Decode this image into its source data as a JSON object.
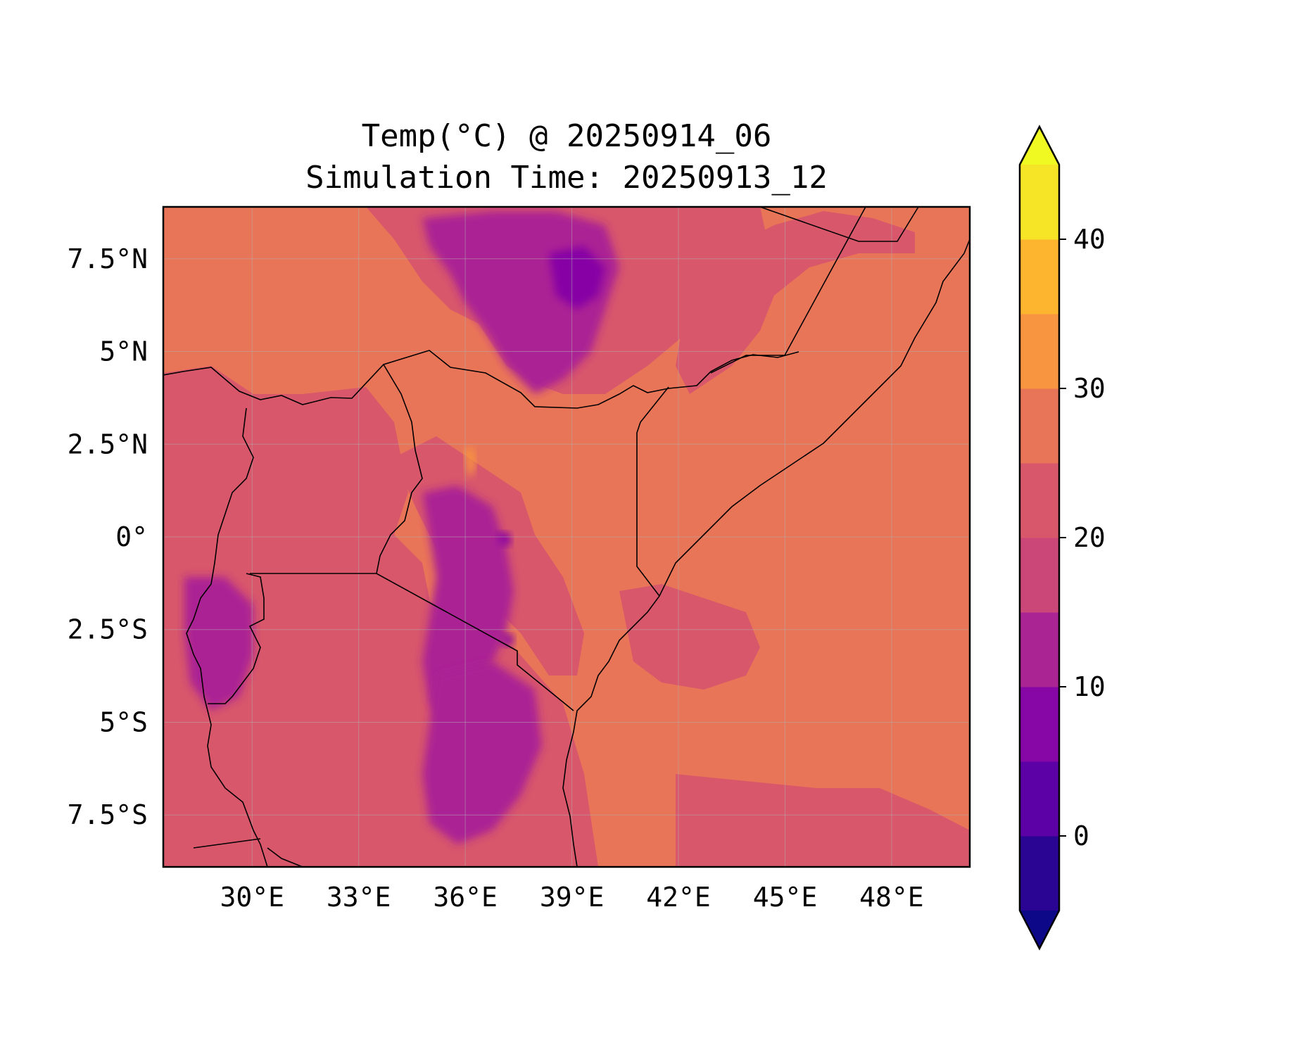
{
  "title": {
    "line1": "Temp(°C) @ 20250914_06",
    "line2": "Simulation Time: 20250913_12"
  },
  "map": {
    "projection": "PlateCarree",
    "lon_range": [
      27.5,
      50.2
    ],
    "lat_range": [
      -8.9,
      8.9
    ],
    "x_ticks": [
      {
        "value": 30,
        "label": "30°E"
      },
      {
        "value": 33,
        "label": "33°E"
      },
      {
        "value": 36,
        "label": "36°E"
      },
      {
        "value": 39,
        "label": "39°E"
      },
      {
        "value": 42,
        "label": "42°E"
      },
      {
        "value": 45,
        "label": "45°E"
      },
      {
        "value": 48,
        "label": "48°E"
      }
    ],
    "y_ticks": [
      {
        "value": 7.5,
        "label": "7.5°N"
      },
      {
        "value": 5,
        "label": "5°N"
      },
      {
        "value": 2.5,
        "label": "2.5°N"
      },
      {
        "value": 0,
        "label": "0°"
      },
      {
        "value": -2.5,
        "label": "2.5°S"
      },
      {
        "value": -5,
        "label": "5°S"
      },
      {
        "value": -7.5,
        "label": "7.5°S"
      }
    ],
    "grid": true,
    "background_color": "#e97558"
  },
  "chart_data": {
    "type": "heatmap",
    "variable": "Temp(°C)",
    "colormap": "plasma",
    "levels": [
      -5,
      0,
      5,
      10,
      15,
      20,
      25,
      30,
      35,
      40,
      45
    ],
    "level_colors": [
      "#2a0593",
      "#5b01a5",
      "#8606a6",
      "#ab2494",
      "#cb4778",
      "#d8576b",
      "#e97558",
      "#f89540",
      "#fdb42f",
      "#f5e526"
    ],
    "extend": "both",
    "under_color": "#0d0887",
    "over_color": "#f0f921"
  },
  "colorbar": {
    "orientation": "vertical",
    "range": [
      -5,
      45
    ],
    "ticks": [
      {
        "value": 0,
        "label": "0"
      },
      {
        "value": 10,
        "label": "10"
      },
      {
        "value": 20,
        "label": "20"
      },
      {
        "value": 30,
        "label": "30"
      },
      {
        "value": 40,
        "label": "40"
      }
    ]
  }
}
